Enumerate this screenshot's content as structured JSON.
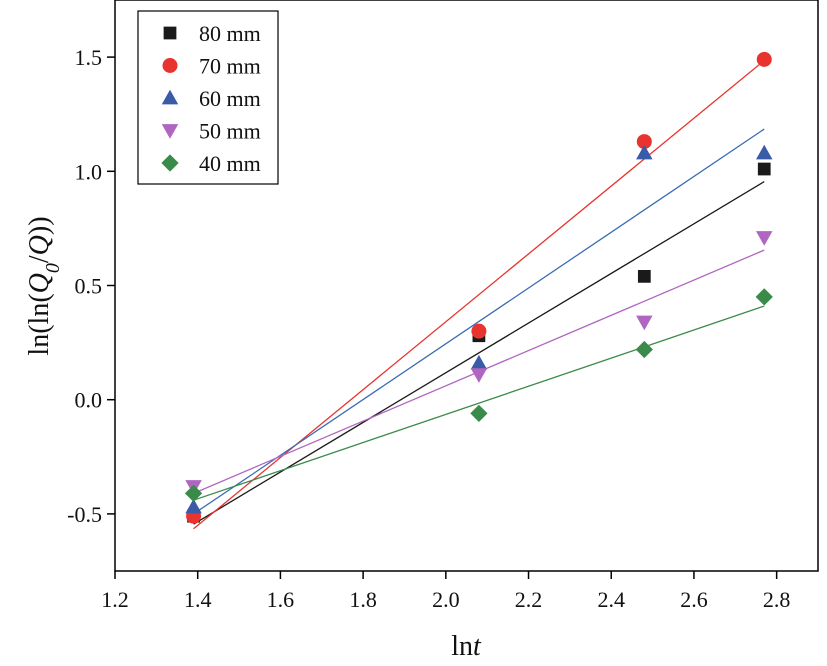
{
  "chart_data": {
    "type": "scatter",
    "title": "",
    "xlabel": {
      "base": "ln",
      "italic": "t"
    },
    "ylabel": {
      "pre": "ln(ln(",
      "italic": "Q",
      "sub": "0",
      "mid": "/",
      "italic2": "Q",
      "post": "))"
    },
    "xlim": [
      1.2,
      2.9
    ],
    "ylim": [
      -0.75,
      1.75
    ],
    "x_ticks": [
      1.2,
      1.4,
      1.6,
      1.8,
      2.0,
      2.2,
      2.4,
      2.6,
      2.8
    ],
    "x_tick_labels": [
      "1.2",
      "1.4",
      "1.6",
      "1.8",
      "2.0",
      "2.2",
      "2.4",
      "2.6",
      "2.8"
    ],
    "y_ticks": [
      -0.5,
      0.0,
      0.5,
      1.0,
      1.5
    ],
    "y_tick_labels": [
      "-0.5",
      "0.0",
      "0.5",
      "1.0",
      "1.5"
    ],
    "grid": false,
    "legend_position": "top-left",
    "x": [
      1.39,
      2.08,
      2.48,
      2.77
    ],
    "series": [
      {
        "name": "80 mm",
        "marker": "square",
        "color": "#1a1a1a",
        "line_color": "#1a1a1a",
        "values": [
          -0.51,
          0.28,
          0.54,
          1.01
        ],
        "fit": [
          [
            1.39,
            -0.545
          ],
          [
            2.77,
            0.955
          ]
        ]
      },
      {
        "name": "70 mm",
        "marker": "circle",
        "color": "#e8332e",
        "line_color": "#e8332e",
        "values": [
          -0.51,
          0.3,
          1.13,
          1.49
        ],
        "fit": [
          [
            1.39,
            -0.565
          ],
          [
            2.77,
            1.485
          ]
        ]
      },
      {
        "name": "60 mm",
        "marker": "triangle-up",
        "color": "#3a5ca8",
        "line_color": "#3a6db5",
        "values": [
          -0.47,
          0.16,
          1.08,
          1.08
        ],
        "fit": [
          [
            1.39,
            -0.5
          ],
          [
            2.77,
            1.185
          ]
        ]
      },
      {
        "name": "50 mm",
        "marker": "triangle-down",
        "color": "#b066c0",
        "line_color": "#b066c0",
        "values": [
          -0.38,
          0.11,
          0.34,
          0.71
        ],
        "fit": [
          [
            1.39,
            -0.41
          ],
          [
            2.77,
            0.655
          ]
        ]
      },
      {
        "name": "40 mm",
        "marker": "diamond",
        "color": "#3a8a4a",
        "line_color": "#3a8a4a",
        "values": [
          -0.41,
          -0.06,
          0.22,
          0.45
        ],
        "fit": [
          [
            1.39,
            -0.44
          ],
          [
            2.77,
            0.41
          ]
        ]
      }
    ]
  }
}
